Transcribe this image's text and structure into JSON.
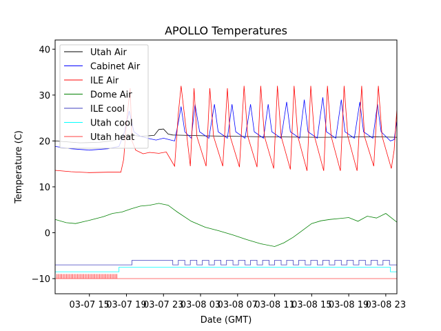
{
  "chart_data": {
    "type": "line",
    "title": "APOLLO Temperatures",
    "xlabel": "Date (GMT)",
    "ylabel": "Temperature (C)",
    "xlim": [
      11.3,
      48.2
    ],
    "ylim": [
      -13.3,
      42.0
    ],
    "x_unit": "hours since 03-07 00:00 GMT",
    "x_ticks": [
      {
        "x": 15,
        "label": "03-07 15"
      },
      {
        "x": 19,
        "label": "03-07 19"
      },
      {
        "x": 23,
        "label": "03-07 23"
      },
      {
        "x": 27,
        "label": "03-08 03"
      },
      {
        "x": 31,
        "label": "03-08 07"
      },
      {
        "x": 35,
        "label": "03-08 11"
      },
      {
        "x": 39,
        "label": "03-08 15"
      },
      {
        "x": 43,
        "label": "03-08 19"
      },
      {
        "x": 47,
        "label": "03-08 23"
      }
    ],
    "y_ticks": [
      -10,
      0,
      10,
      20,
      30,
      40
    ],
    "legend_position": "top-left",
    "series": [
      {
        "name": "Utah Air",
        "color": "#000000",
        "x": [
          11.3,
          14,
          16,
          17.5,
          19,
          19.8,
          20.5,
          22,
          22.5,
          23.0,
          23.5,
          24,
          28,
          34,
          40,
          46,
          48.2
        ],
        "y": [
          20.0,
          19.6,
          19.7,
          20.0,
          21.0,
          21.2,
          21.0,
          21.2,
          22.5,
          22.6,
          21.5,
          21.3,
          21.1,
          20.9,
          20.8,
          20.9,
          20.8
        ]
      },
      {
        "name": "Cabinet Air",
        "color": "#0000ff",
        "x": [
          11.3,
          13,
          15,
          17,
          18.2,
          18.8,
          19.3,
          19.8,
          20.5,
          21.5,
          22.2,
          23,
          23.8,
          24.2,
          24.6,
          24.9,
          25.3,
          26.0,
          26.4,
          26.9,
          27.9,
          28.5,
          28.9,
          29.9,
          30.4,
          30.8,
          31.8,
          32.4,
          32.8,
          33.8,
          34.3,
          34.7,
          35.7,
          36.3,
          36.7,
          37.7,
          38.2,
          38.6,
          39.6,
          40.2,
          40.6,
          41.6,
          42.2,
          42.6,
          43.6,
          44.2,
          44.6,
          45.6,
          46.1,
          46.5,
          47.5,
          47.9,
          48.2
        ],
        "y": [
          18.8,
          18.3,
          18.0,
          18.3,
          18.8,
          22.0,
          26.5,
          22.0,
          21.0,
          20.5,
          20.2,
          20.6,
          20.2,
          20.0,
          24.0,
          27.5,
          22.0,
          20.6,
          28.0,
          22.0,
          20.6,
          28.0,
          22.0,
          20.6,
          28.0,
          22.0,
          20.6,
          28.0,
          22.0,
          20.6,
          28.0,
          22.0,
          20.6,
          28.5,
          22.0,
          20.6,
          29.0,
          22.0,
          20.6,
          29.5,
          22.0,
          20.6,
          29.0,
          22.0,
          20.6,
          28.5,
          22.0,
          20.6,
          28.0,
          22.0,
          20.0,
          20.3,
          24.5
        ]
      },
      {
        "name": "ILE Air",
        "color": "#ff0000",
        "x": [
          11.3,
          13,
          15,
          17,
          18.4,
          18.7,
          19.0,
          19.4,
          19.6,
          20.0,
          20.8,
          21.5,
          22.5,
          23.3,
          24.2,
          24.6,
          24.9,
          25.9,
          26.3,
          26.6,
          27.6,
          28.0,
          28.4,
          29.4,
          29.9,
          30.2,
          31.2,
          31.7,
          32.1,
          33.1,
          33.5,
          33.9,
          34.9,
          35.3,
          35.7,
          36.7,
          37.1,
          37.5,
          38.5,
          38.9,
          39.3,
          40.3,
          40.7,
          41.1,
          42.1,
          42.5,
          42.9,
          43.9,
          44.4,
          44.7,
          45.7,
          46.2,
          46.6,
          47.6,
          47.9,
          48.2
        ],
        "y": [
          13.6,
          13.3,
          13.1,
          13.2,
          13.2,
          16.0,
          24.0,
          31.5,
          20.0,
          18.0,
          17.2,
          17.5,
          17.3,
          17.6,
          14.5,
          26.0,
          32.0,
          14.5,
          31.5,
          21.0,
          14.5,
          31.5,
          21.0,
          14.5,
          31.5,
          21.0,
          14.3,
          32.0,
          21.0,
          14.3,
          32.0,
          21.0,
          14.0,
          32.0,
          21.0,
          13.8,
          32.0,
          21.0,
          13.5,
          32.0,
          21.0,
          13.5,
          32.0,
          21.0,
          13.5,
          32.0,
          21.0,
          13.5,
          32.0,
          21.0,
          14.5,
          32.0,
          21.0,
          14.0,
          18.0,
          27.0
        ]
      },
      {
        "name": "Dome Air",
        "color": "#008000",
        "x": [
          11.3,
          12.5,
          13.5,
          15,
          16.5,
          17.5,
          18.5,
          19.5,
          20.5,
          21.5,
          22.5,
          23.5,
          24.5,
          26,
          27.5,
          29,
          30.5,
          32,
          33.5,
          35,
          36,
          37,
          38,
          39,
          40,
          41,
          42,
          43,
          44,
          45,
          46,
          47,
          48.2
        ],
        "y": [
          2.9,
          2.2,
          2.0,
          2.7,
          3.5,
          4.2,
          4.5,
          5.2,
          5.8,
          6.0,
          6.4,
          6.0,
          4.5,
          2.5,
          1.2,
          0.4,
          -0.5,
          -1.5,
          -2.4,
          -3.0,
          -2.2,
          -1.0,
          0.5,
          2.0,
          2.6,
          2.9,
          3.1,
          3.3,
          2.5,
          3.6,
          3.2,
          4.2,
          2.3
        ]
      },
      {
        "name": "ILE cool",
        "color": "#3f3fbf",
        "x": [
          11.3,
          17,
          19.6,
          19.6,
          24.0,
          24.0,
          24.6,
          24.6,
          25.3,
          25.3,
          25.9,
          25.9,
          26.6,
          26.6,
          27.2,
          27.2,
          27.9,
          27.9,
          28.5,
          28.5,
          29.2,
          29.2,
          29.8,
          29.8,
          30.5,
          30.5,
          31.1,
          31.1,
          31.8,
          31.8,
          32.4,
          32.4,
          33.1,
          33.1,
          33.7,
          33.7,
          34.4,
          34.4,
          35.0,
          35.0,
          35.7,
          35.7,
          36.3,
          36.3,
          37.0,
          37.0,
          37.6,
          37.6,
          38.3,
          38.3,
          38.9,
          38.9,
          39.6,
          39.6,
          40.2,
          40.2,
          40.9,
          40.9,
          41.5,
          41.5,
          42.2,
          42.2,
          42.8,
          42.8,
          43.5,
          43.5,
          44.1,
          44.1,
          44.8,
          44.8,
          45.4,
          45.4,
          46.1,
          46.1,
          46.7,
          46.7,
          47.4,
          47.4,
          48.2
        ],
        "y": [
          -7.0,
          -7.0,
          -7.0,
          -6.0,
          -6.0,
          -7.0,
          -7.0,
          -6.0,
          -6.0,
          -7.0,
          -7.0,
          -6.0,
          -6.0,
          -7.0,
          -7.0,
          -6.0,
          -6.0,
          -7.0,
          -7.0,
          -6.0,
          -6.0,
          -7.0,
          -7.0,
          -6.0,
          -6.0,
          -7.0,
          -7.0,
          -6.0,
          -6.0,
          -7.0,
          -7.0,
          -6.0,
          -6.0,
          -7.0,
          -7.0,
          -6.0,
          -6.0,
          -7.0,
          -7.0,
          -6.0,
          -6.0,
          -7.0,
          -7.0,
          -6.0,
          -6.0,
          -7.0,
          -7.0,
          -6.0,
          -6.0,
          -7.0,
          -7.0,
          -6.0,
          -6.0,
          -7.0,
          -7.0,
          -6.0,
          -6.0,
          -7.0,
          -7.0,
          -6.0,
          -6.0,
          -7.0,
          -7.0,
          -6.0,
          -6.0,
          -7.0,
          -7.0,
          -6.0,
          -6.0,
          -7.0,
          -7.0,
          -6.0,
          -6.0,
          -7.0,
          -7.0,
          -6.0,
          -6.0,
          -7.0,
          -7.0
        ]
      },
      {
        "name": "Utah cool",
        "color": "#00ffff",
        "x": [
          11.3,
          18.2,
          18.2,
          47.5,
          47.5,
          48.2,
          48.2
        ],
        "y": [
          -8.5,
          -8.5,
          -7.5,
          -7.5,
          -8.5,
          -8.5,
          -7.5
        ]
      },
      {
        "name": "Utah heat",
        "color": "#ff4040",
        "x": [
          11.3,
          48.2
        ],
        "y": [
          -10.0,
          -10.0
        ],
        "pulse_x_range": [
          11.5,
          18.1
        ],
        "pulse_y_range": [
          -10.0,
          -9.0
        ]
      }
    ]
  }
}
